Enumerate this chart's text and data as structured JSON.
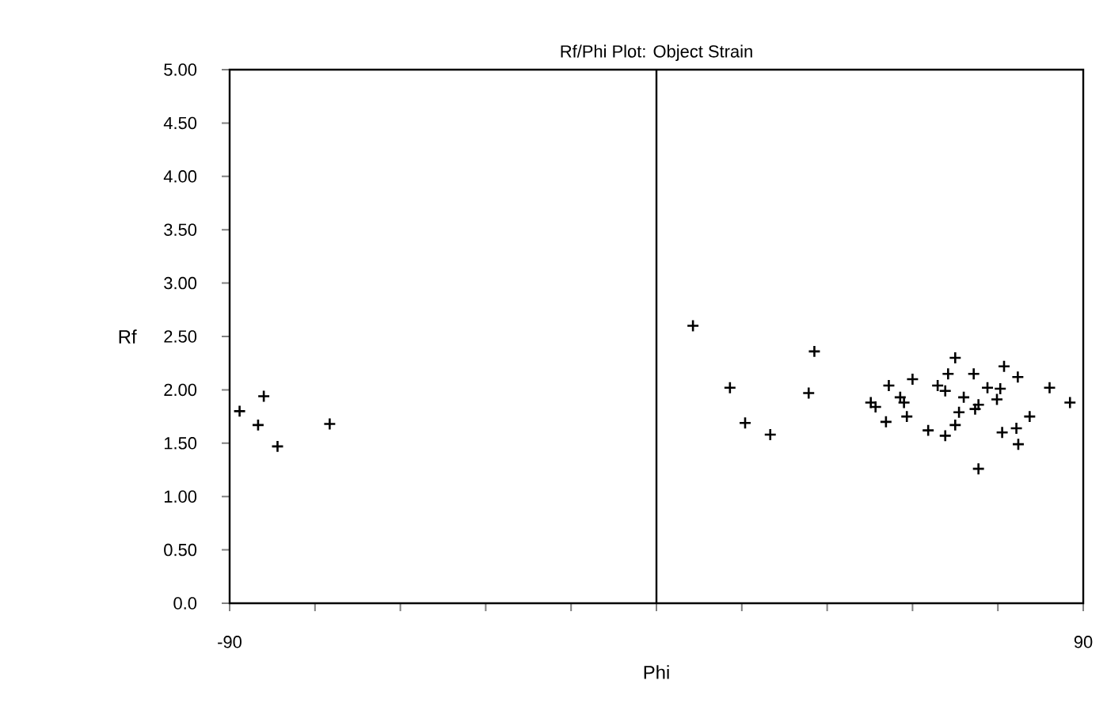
{
  "chart_data": {
    "type": "scatter",
    "title": "Rf/Phi Plot: Object Strain",
    "xlabel": "Phi",
    "ylabel": "Rf",
    "x": [
      -87.9,
      -84.0,
      -82.8,
      -79.9,
      -68.9,
      7.7,
      15.5,
      18.7,
      24.0,
      32.1,
      33.3,
      45.2,
      46.2,
      48.4,
      49.0,
      51.4,
      52.2,
      52.8,
      54.0,
      57.3,
      59.3,
      60.9,
      61.5,
      60.9,
      63.0,
      63.0,
      63.8,
      64.8,
      67.2,
      67.9,
      66.9,
      67.9,
      69.8,
      71.8,
      72.5,
      73.3,
      72.9,
      76.2,
      75.9,
      76.3,
      78.7,
      82.9,
      87.2
    ],
    "series": [
      {
        "color": "#000000",
        "values": [
          1.8,
          1.67,
          1.94,
          1.47,
          1.68,
          2.6,
          2.02,
          1.69,
          1.58,
          1.97,
          2.36,
          1.88,
          1.84,
          1.7,
          2.04,
          1.93,
          1.88,
          1.75,
          2.1,
          1.62,
          2.04,
          1.99,
          2.15,
          1.57,
          2.3,
          1.67,
          1.79,
          1.93,
          1.82,
          1.86,
          2.15,
          1.26,
          2.02,
          1.91,
          2.01,
          2.22,
          1.6,
          2.12,
          1.64,
          1.49,
          1.75,
          2.02,
          1.88
        ]
      }
    ],
    "xlim": [
      -90,
      90
    ],
    "xticks": [
      -90,
      {
        "value": -72,
        "label": null
      },
      {
        "value": -54,
        "label": null
      },
      {
        "value": -36,
        "label": null
      },
      {
        "value": -18,
        "label": null
      },
      {
        "value": 0,
        "label": null
      },
      {
        "value": 18,
        "label": null
      },
      {
        "value": 36,
        "label": null
      },
      {
        "value": 54,
        "label": null
      },
      {
        "value": 72,
        "label": null
      },
      90
    ],
    "ylim": [
      0,
      5
    ],
    "yticks": [
      {
        "value": 0,
        "label": "0.0"
      },
      {
        "value": 0.5,
        "label": "0.50"
      },
      {
        "value": 1,
        "label": "1.00"
      },
      {
        "value": 1.5,
        "label": "1.50"
      },
      {
        "value": 2,
        "label": "2.00"
      },
      {
        "value": 2.5,
        "label": "2.50"
      },
      {
        "value": 3,
        "label": "3.00"
      },
      {
        "value": 3.5,
        "label": "3.50"
      },
      {
        "value": 4,
        "label": "4.00"
      },
      {
        "value": 4.5,
        "label": "4.50"
      },
      {
        "value": 5,
        "label": "5.00"
      }
    ],
    "ref_lines": [
      {
        "axis": "x",
        "value": 0,
        "color": "#000000"
      }
    ],
    "marker": "cross",
    "grid": false
  }
}
